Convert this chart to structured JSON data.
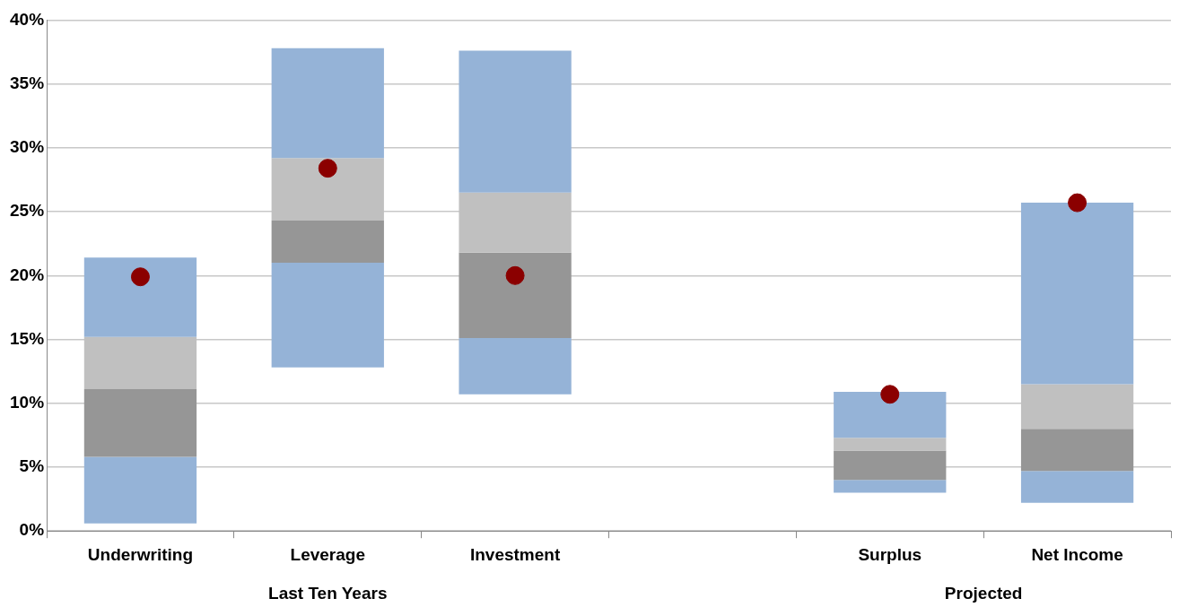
{
  "chart_data": {
    "type": "bar",
    "categories": [
      "Underwriting",
      "Leverage",
      "Investment",
      null,
      "Surplus",
      "Net Income"
    ],
    "series": [
      {
        "color": "#95b3d7",
        "base": [
          0.6,
          12.8,
          10.7,
          null,
          3.0,
          2.2
        ],
        "values": [
          5.2,
          8.2,
          4.4,
          null,
          1.0,
          2.5
        ]
      },
      {
        "color": "#969696",
        "base": [
          5.8,
          21.0,
          15.1,
          null,
          4.0,
          4.7
        ],
        "values": [
          5.3,
          3.3,
          6.7,
          null,
          2.3,
          3.3
        ]
      },
      {
        "color": "#c0c0c0",
        "base": [
          11.1,
          24.3,
          21.8,
          null,
          6.3,
          8.0
        ],
        "values": [
          4.1,
          4.9,
          4.7,
          null,
          1.0,
          3.5
        ]
      },
      {
        "color": "#95b3d7",
        "base": [
          15.2,
          29.2,
          26.5,
          null,
          7.3,
          11.5
        ],
        "values": [
          6.2,
          8.6,
          11.1,
          null,
          3.6,
          14.2
        ]
      },
      {
        "type": "scatter",
        "color": "#8b0000",
        "x": [
          "Underwriting",
          "Leverage",
          "Investment",
          "Surplus",
          "Net Income"
        ],
        "values": [
          19.9,
          28.4,
          20.0,
          10.7,
          25.7
        ]
      }
    ],
    "ylim": [
      0,
      40
    ],
    "yticks": [
      {
        "value": 0,
        "label": "0%"
      },
      {
        "value": 5,
        "label": "5%"
      },
      {
        "value": 10,
        "label": "10%"
      },
      {
        "value": 15,
        "label": "15%"
      },
      {
        "value": 20,
        "label": "20%"
      },
      {
        "value": 25,
        "label": "25%"
      },
      {
        "value": 30,
        "label": "30%"
      },
      {
        "value": 35,
        "label": "35%"
      },
      {
        "value": 40,
        "label": "40%"
      }
    ],
    "grid": "y",
    "legend": false,
    "marker": "circle",
    "annotations": [
      "Last Ten Years",
      "Projected"
    ]
  }
}
